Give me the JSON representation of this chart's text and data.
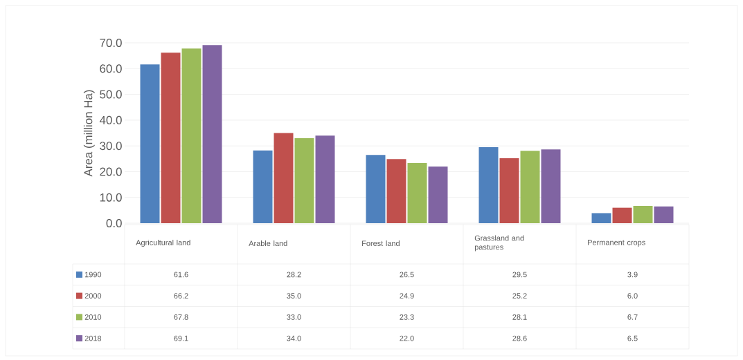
{
  "chart_data": {
    "type": "bar",
    "ylabel": "Area (million Ha)",
    "categories": [
      "Agricultural land",
      "Arable land",
      "Forest land",
      "Grassland and pastures",
      "Permanent crops"
    ],
    "series": [
      {
        "name": "1990",
        "color": "#4f81bd",
        "values": [
          61.6,
          28.2,
          26.5,
          29.5,
          3.9
        ],
        "value_labels": [
          "61.6",
          "28.2",
          "26.5",
          "29.5",
          "3.9"
        ]
      },
      {
        "name": "2000",
        "color": "#c0504d",
        "values": [
          66.2,
          35.0,
          24.9,
          25.2,
          6.0
        ],
        "value_labels": [
          "66.2",
          "35.0",
          "24.9",
          "25.2",
          "6.0"
        ]
      },
      {
        "name": "2010",
        "color": "#9bbb59",
        "values": [
          67.8,
          33.0,
          23.3,
          28.1,
          6.7
        ],
        "value_labels": [
          "67.8",
          "33.0",
          "23.3",
          "28.1",
          "6.7"
        ]
      },
      {
        "name": "2018",
        "color": "#8064a2",
        "values": [
          69.1,
          34.0,
          22.0,
          28.6,
          6.5
        ],
        "value_labels": [
          "69.1",
          "34.0",
          "22.0",
          "28.6",
          "6.5"
        ]
      }
    ],
    "ylim": [
      0,
      70
    ],
    "yticks": [
      {
        "value": 0,
        "label": "0.0"
      },
      {
        "value": 10,
        "label": "10.0"
      },
      {
        "value": 20,
        "label": "20.0"
      },
      {
        "value": 30,
        "label": "30.0"
      },
      {
        "value": 40,
        "label": "40.0"
      },
      {
        "value": 50,
        "label": "50.0"
      },
      {
        "value": 60,
        "label": "60.0"
      },
      {
        "value": 70,
        "label": "70.0"
      }
    ],
    "grid": "y",
    "legend": "bottom"
  }
}
